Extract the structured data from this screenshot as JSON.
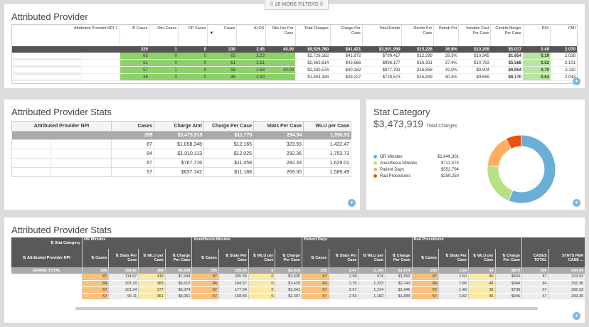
{
  "filters_label": "28 MORE FILTERS",
  "panel1": {
    "title": "Attributed Provider",
    "headers": [
      "Attributed Provider NPI",
      "IP Cases",
      "Obv Cases",
      "OP Cases",
      "Cases",
      "ALOS",
      "Obv Hrs Per Case",
      "Total Charges",
      "Charge Per Case",
      "Total Reimb",
      "Reimb Per Case",
      "Reimb Pct",
      "Variable Cost Per Case",
      "Contrib Margin Per Case",
      "ROI",
      "CMI"
    ],
    "total": [
      "",
      "229",
      "1",
      "0",
      "230",
      "2.45",
      "40.00",
      "$9,526,780",
      "$41,421",
      "$3,501,959",
      "$15,226",
      "36.8%",
      "$10,209",
      "$5,017",
      "0.49",
      "2.070"
    ],
    "rows": [
      [
        "",
        "65",
        "0",
        "0",
        "65",
        "2.23",
        "",
        "$2,728,162",
        "$41,972",
        "$799,417",
        "$12,299",
        "29.3%",
        "$10,345",
        "$1,954",
        "0.19",
        "2.028"
      ],
      [
        "",
        "61",
        "0",
        "0",
        "61",
        "2.51",
        "",
        "$2,663,614",
        "$43,666",
        "$996,177",
        "$16,331",
        "37.4%",
        "$10,763",
        "$5,568",
        "0.52",
        "2.101"
      ],
      [
        "",
        "57",
        "1",
        "0",
        "58",
        "2.58",
        "40.00",
        "$2,330,576",
        "$40,182",
        "$977,791",
        "$16,858",
        "42.0%",
        "$9,904",
        "$6,954",
        "0.70",
        "2.110"
      ],
      [
        "",
        "46",
        "0",
        "0",
        "46",
        "2.50",
        "",
        "$1,804,428",
        "$39,227",
        "$728,573",
        "$15,839",
        "40.4%",
        "$9,669",
        "$6,170",
        "0.64",
        "2.043"
      ]
    ]
  },
  "panel2": {
    "title": "Attributed Provider Stats",
    "headers": [
      "Attributed Provider NPI",
      "Cases",
      "Charge Amt",
      "Charge Per Case",
      "Stats Per Case",
      "WLU per Case"
    ],
    "total": [
      "",
      "295",
      "$3,473,919",
      "$11,776",
      "294.94",
      "1,598.93"
    ],
    "rows": [
      [
        "",
        "87",
        "$1,058,348",
        "$12,165",
        "323.93",
        "1,432.47"
      ],
      [
        "",
        "84",
        "$1,010,113",
        "$12,025",
        "292.36",
        "1,753.73"
      ],
      [
        "",
        "67",
        "$767,716",
        "$11,458",
        "282.33",
        "1,629.01"
      ],
      [
        "",
        "57",
        "$637,742",
        "$11,188",
        "269.30",
        "1,589.49"
      ]
    ]
  },
  "panel3": {
    "title": "Stat Category",
    "big_value": "$3,473,919",
    "big_label": "Total Charges",
    "legend": [
      {
        "label": "OR Minutes",
        "value": "$1,949,301",
        "color": "#6baed6"
      },
      {
        "label": "Anesthesia Minutes",
        "value": "$712,574",
        "color": "#b8e186"
      },
      {
        "label": "Patient Days",
        "value": "$552,794",
        "color": "#fdae61"
      },
      {
        "label": "Rad Procedures",
        "value": "$259,250",
        "color": "#e6550d"
      }
    ]
  },
  "chart_data": {
    "type": "pie",
    "categories": [
      "OR Minutes",
      "Anesthesia Minutes",
      "Patient Days",
      "Rad Procedures"
    ],
    "values": [
      1949301,
      712574,
      552794,
      259250
    ],
    "colors": [
      "#6baed6",
      "#b8e186",
      "#fdae61",
      "#e6550d"
    ],
    "title": "Stat Category",
    "legend": "left"
  },
  "panel4": {
    "title": "Attributed Provider Stats",
    "stat_category_label": "Stat Category",
    "row_label": "Attributed Provider NPI",
    "groups": [
      "OR Minutes",
      "Anesthesia Minutes",
      "Patient Days",
      "Rad Procedures"
    ],
    "sub_headers": [
      "Cases",
      "Stats Per Case",
      "WLU per Case",
      "Charge Per Case"
    ],
    "totals_headers": [
      "CASES TOTAL",
      "STATS PER CASE ..."
    ],
    "grand_total_label": "GRAND TOTAL",
    "grand_total": [
      "295",
      "104.82",
      "388",
      "$6,608",
      "295",
      "185.96",
      "0",
      "$2,416",
      "295",
      "2.47",
      "1,168",
      "$1,874",
      "295",
      "1.69",
      "43",
      "$879",
      "295",
      "294.94"
    ],
    "rows": [
      [
        "87",
        "114.87",
        "419",
        "$7,244",
        "87",
        "205.38",
        "0",
        "$2,535",
        "87",
        "2.08",
        "974",
        "$1,552",
        "87",
        "1.60",
        "40",
        "$834",
        "87",
        "323.93"
      ],
      [
        "84",
        "103.18",
        "383",
        "$6,513",
        "84",
        "184.57",
        "0",
        "$2,425",
        "84",
        "2.75",
        "1,323",
        "$2,143",
        "84",
        "1.86",
        "48",
        "$944",
        "84",
        "292.36"
      ],
      [
        "67",
        "101.24",
        "377",
        "$6,374",
        "67",
        "177.04",
        "0",
        "$2,341",
        "67",
        "2.57",
        "1,214",
        "$1,946",
        "67",
        "1.48",
        "38",
        "$798",
        "67",
        "282.33"
      ],
      [
        "57",
        "96.11",
        "361",
        "$6,051",
        "57",
        "168.84",
        "0",
        "$2,307",
        "57",
        "2.53",
        "1,182",
        "$1,884",
        "57",
        "1.82",
        "46",
        "$946",
        "57",
        "269.30"
      ]
    ]
  }
}
